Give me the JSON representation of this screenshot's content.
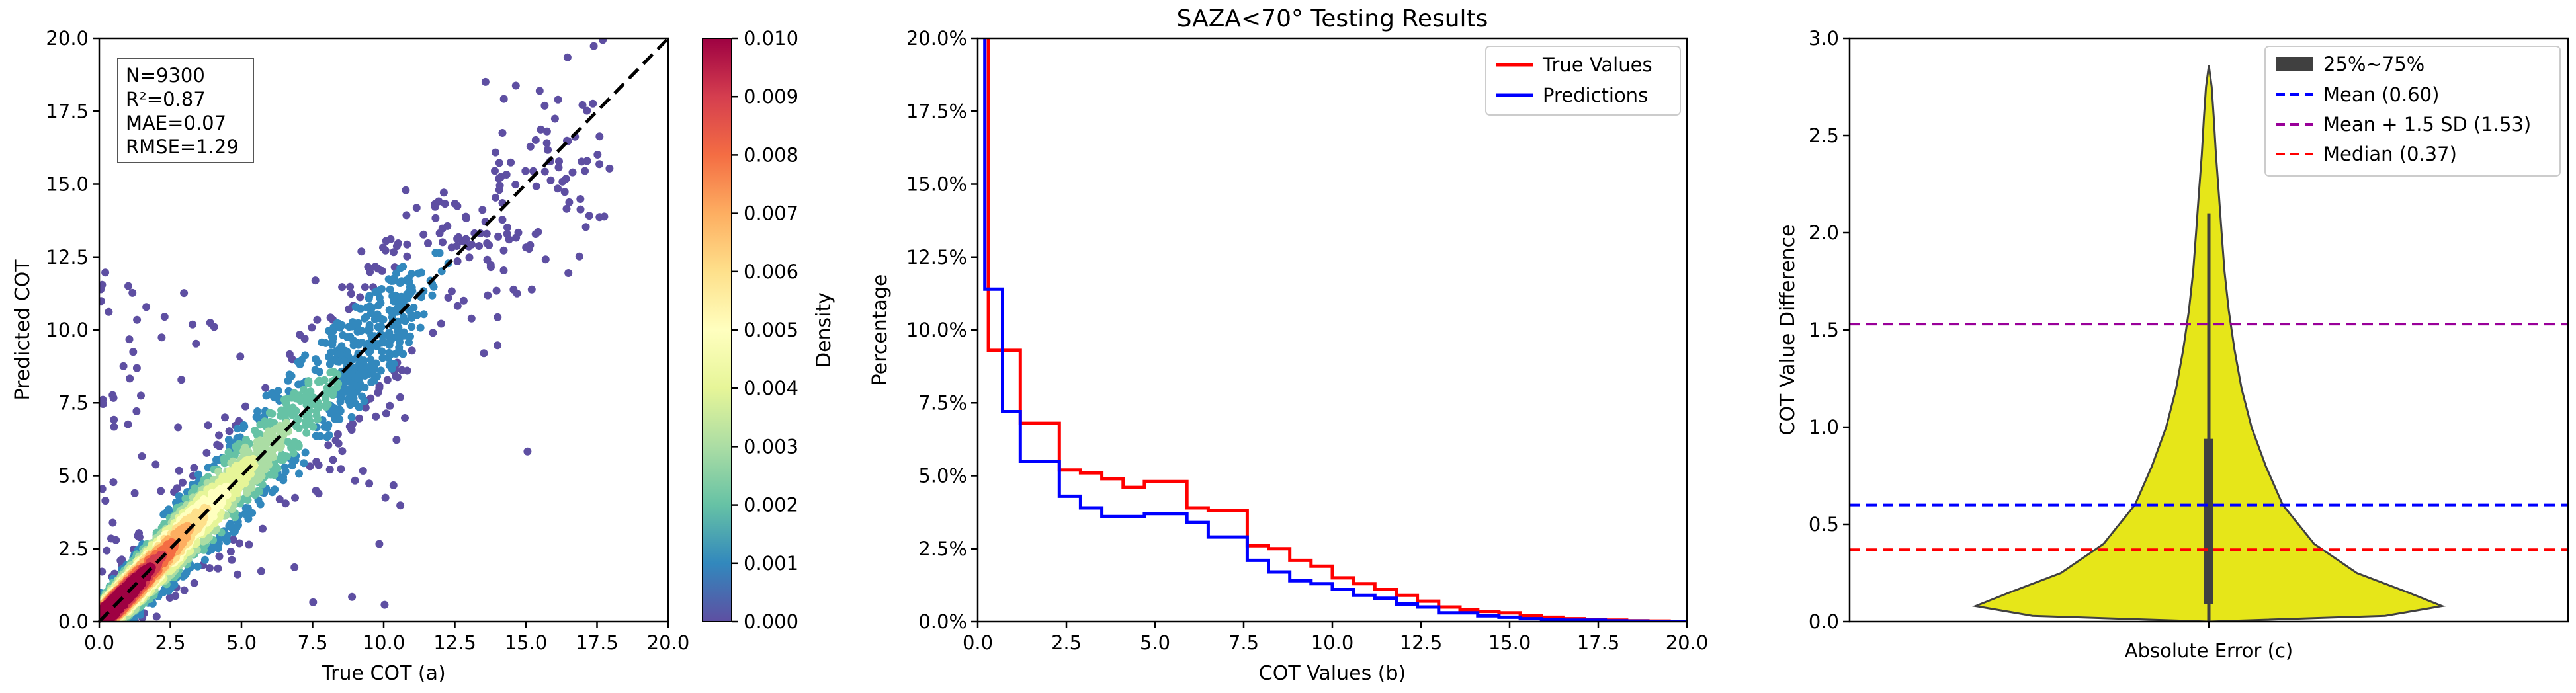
{
  "colors": {
    "true_line": "#ff0000",
    "pred_line": "#0000ff",
    "violin_fill": "#e6e619",
    "violin_edge": "#404040",
    "iqr_box": "#404040",
    "mean_line": "#0000ff",
    "mean_sd_line": "#990099",
    "median_line": "#ff0000",
    "diag_line": "#000000"
  },
  "chart_data": [
    {
      "type": "scatter",
      "panel": "a",
      "title": "",
      "xlabel": "True COT (a)",
      "ylabel": "Predicted COT",
      "xlim": [
        0,
        20
      ],
      "ylim": [
        0,
        20
      ],
      "xticks": [
        "0.0",
        "2.5",
        "5.0",
        "7.5",
        "10.0",
        "12.5",
        "15.0",
        "17.5",
        "20.0"
      ],
      "yticks": [
        "0.0",
        "2.5",
        "5.0",
        "7.5",
        "10.0",
        "12.5",
        "15.0",
        "17.5",
        "20.0"
      ],
      "stats": [
        "N=9300",
        "R²=0.87",
        "MAE=0.07",
        "RMSE=1.29"
      ],
      "identity_line": [
        [
          0,
          0
        ],
        [
          20,
          20
        ]
      ],
      "n_points": 9300,
      "colorbar": {
        "label": "Density",
        "range": [
          0,
          0.01
        ],
        "ticks": [
          "0.000",
          "0.001",
          "0.002",
          "0.003",
          "0.004",
          "0.005",
          "0.006",
          "0.007",
          "0.008",
          "0.009",
          "0.010"
        ],
        "colormap": "Spectral_r"
      }
    },
    {
      "type": "line",
      "panel": "b",
      "title": "SAZA<70° Testing Results",
      "xlabel": "COT Values (b)",
      "ylabel": "Percentage",
      "xlim": [
        0,
        20
      ],
      "ylim": [
        0,
        20
      ],
      "xticks": [
        "0.0",
        "2.5",
        "5.0",
        "7.5",
        "10.0",
        "12.5",
        "15.0",
        "17.5",
        "20.0"
      ],
      "yticks": [
        "0.0%",
        "2.5%",
        "5.0%",
        "7.5%",
        "10.0%",
        "12.5%",
        "15.0%",
        "17.5%",
        "20.0%"
      ],
      "bin_edges": [
        0.3,
        0.7,
        1.2,
        1.7,
        2.3,
        2.9,
        3.5,
        4.1,
        4.7,
        5.3,
        5.9,
        6.5,
        7.1,
        7.6,
        8.2,
        8.8,
        9.4,
        10,
        10.6,
        11.2,
        11.8,
        12.4,
        13,
        13.6,
        14.1,
        14.7,
        15.3,
        15.9,
        16.5,
        17.1,
        17.7,
        18.3,
        18.9,
        19.5,
        20
      ],
      "series": [
        {
          "name": "True Values",
          "values": [
            9.3,
            9.3,
            6.8,
            6.8,
            5.2,
            5.1,
            4.9,
            4.6,
            4.8,
            4.8,
            3.9,
            3.8,
            3.8,
            2.6,
            2.5,
            2.1,
            1.9,
            1.5,
            1.3,
            1.1,
            0.9,
            0.7,
            0.5,
            0.4,
            0.35,
            0.3,
            0.2,
            0.15,
            0.1,
            0.08,
            0.05,
            0.03,
            0.02,
            0.01
          ]
        },
        {
          "name": "Predictions",
          "values": [
            11.4,
            7.2,
            5.5,
            5.5,
            4.3,
            3.9,
            3.6,
            3.6,
            3.7,
            3.7,
            3.4,
            2.9,
            2.9,
            2.1,
            1.7,
            1.4,
            1.3,
            1.1,
            0.9,
            0.8,
            0.6,
            0.5,
            0.3,
            0.3,
            0.2,
            0.15,
            0.1,
            0.08,
            0.05,
            0.05,
            0.03,
            0.02,
            0.01,
            0.01
          ]
        }
      ]
    },
    {
      "type": "violin",
      "panel": "c",
      "title": "",
      "xlabel": "Absolute Error (c)",
      "ylabel": "COT Value Difference",
      "ylim": [
        0,
        3
      ],
      "yticks": [
        "0.0",
        "0.5",
        "1.0",
        "1.5",
        "2.0",
        "2.5",
        "3.0"
      ],
      "profile": [
        [
          0.0,
          0.0
        ],
        [
          0.03,
          0.62
        ],
        [
          0.08,
          0.82
        ],
        [
          0.15,
          0.7
        ],
        [
          0.25,
          0.52
        ],
        [
          0.4,
          0.37
        ],
        [
          0.6,
          0.26
        ],
        [
          0.8,
          0.2
        ],
        [
          1.0,
          0.15
        ],
        [
          1.2,
          0.115
        ],
        [
          1.4,
          0.09
        ],
        [
          1.6,
          0.07
        ],
        [
          1.8,
          0.055
        ],
        [
          2.0,
          0.045
        ],
        [
          2.2,
          0.035
        ],
        [
          2.4,
          0.025
        ],
        [
          2.6,
          0.017
        ],
        [
          2.75,
          0.01
        ],
        [
          2.86,
          0.0
        ]
      ],
      "whisker": [
        0.0,
        2.1
      ],
      "iqr": [
        0.09,
        0.94
      ],
      "reference_lines": [
        {
          "label": "Mean (0.60)",
          "value": 0.6
        },
        {
          "label": "Mean + 1.5 SD (1.53)",
          "value": 1.53
        },
        {
          "label": "Median (0.37)",
          "value": 0.37
        }
      ],
      "legend": [
        "25%~75%",
        "Mean (0.60)",
        "Mean + 1.5 SD (1.53)",
        "Median (0.37)"
      ]
    }
  ]
}
